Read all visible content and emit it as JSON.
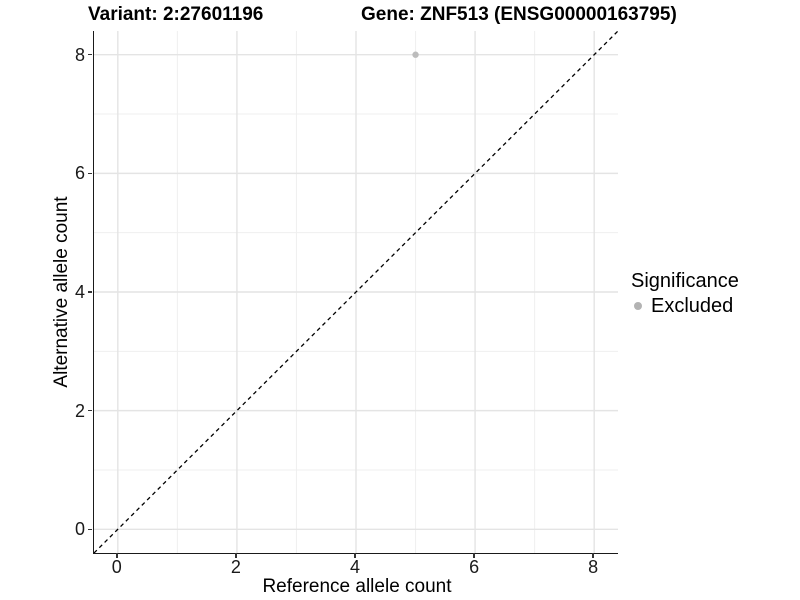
{
  "titles": {
    "variant": "Variant: 2:27601196",
    "gene": "Gene: ZNF513 (ENSG00000163795)"
  },
  "chart_data": {
    "type": "scatter",
    "xlabel": "Reference allele count",
    "ylabel": "Alternative allele count",
    "xlim": [
      -0.4,
      8.4
    ],
    "ylim": [
      -0.4,
      8.4
    ],
    "xticks": [
      0,
      2,
      4,
      6,
      8
    ],
    "yticks": [
      0,
      2,
      4,
      6,
      8
    ],
    "minor_xticks": [
      1,
      3,
      5,
      7
    ],
    "minor_yticks": [
      1,
      3,
      5,
      7
    ],
    "grid": "major and minor gridlines on, white panel",
    "points": [
      {
        "x": 5,
        "y": 8,
        "series": "Excluded"
      }
    ],
    "reference_line": {
      "type": "identity y=x",
      "style": "dashed",
      "from": -0.4,
      "to": 8.4,
      "color": "#000000"
    },
    "legend": {
      "title": "Significance",
      "position": "right",
      "items": [
        {
          "label": "Excluded",
          "color": "#b3b3b3"
        }
      ]
    }
  },
  "colors": {
    "background": "#ffffff",
    "major_grid": "#e4e4e4",
    "minor_grid": "#efefef",
    "axis_line": "#1a1a1a",
    "tick_mark": "#333333",
    "text": "#000000",
    "point_fill": "#bcbcbc"
  }
}
